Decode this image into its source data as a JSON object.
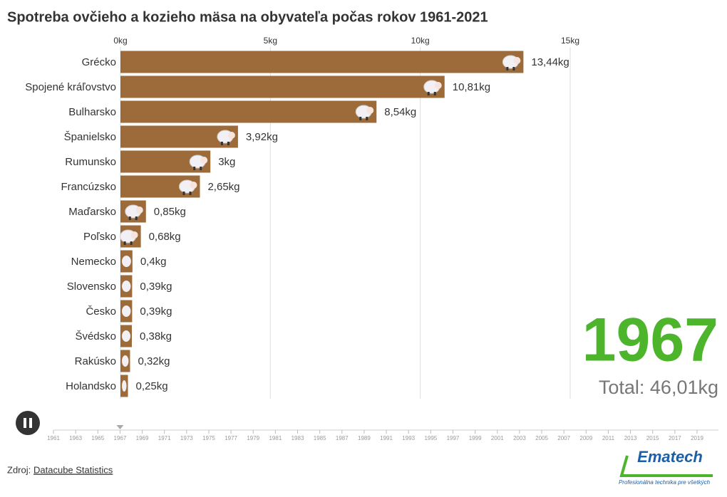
{
  "chart_data": {
    "type": "bar",
    "title": "Spotreba ovčieho a kozieho mäsa na obyvateľa počas rokov 1961-2021",
    "orientation": "horizontal",
    "categories": [
      "Grécko",
      "Spojené kráľovstvo",
      "Bulharsko",
      "Španielsko",
      "Rumunsko",
      "Francúzsko",
      "Maďarsko",
      "Poľsko",
      "Nemecko",
      "Slovensko",
      "Česko",
      "Švédsko",
      "Rakúsko",
      "Holandsko"
    ],
    "values": [
      13.44,
      10.81,
      8.54,
      3.92,
      3,
      2.65,
      0.85,
      0.68,
      0.4,
      0.39,
      0.39,
      0.38,
      0.32,
      0.25
    ],
    "value_labels": [
      "13,44kg",
      "10,81kg",
      "8,54kg",
      "3,92kg",
      "3kg",
      "2,65kg",
      "0,85kg",
      "0,68kg",
      "0,4kg",
      "0,39kg",
      "0,39kg",
      "0,38kg",
      "0,32kg",
      "0,25kg"
    ],
    "color": "#9d6a39",
    "xlim": [
      0,
      15
    ],
    "xticks": [
      {
        "value": 0,
        "label": "0kg"
      },
      {
        "value": 5,
        "label": "5kg"
      },
      {
        "value": 10,
        "label": "10kg"
      },
      {
        "value": 15,
        "label": "15kg"
      }
    ],
    "grid": true,
    "timeline": {
      "current": 1967,
      "years": [
        1961,
        1963,
        1965,
        1967,
        1969,
        1971,
        1973,
        1975,
        1977,
        1979,
        1981,
        1983,
        1985,
        1987,
        1989,
        1991,
        1993,
        1995,
        1997,
        1999,
        2001,
        2003,
        2005,
        2007,
        2009,
        2011,
        2013,
        2015,
        2017,
        2019
      ]
    },
    "total_label": "Total: 46,01kg",
    "source_prefix": "Zdroj:",
    "source": "Datacube Statistics",
    "logo": "Ematech",
    "logo_tagline": "Profesionálna technika pre všetkých"
  }
}
